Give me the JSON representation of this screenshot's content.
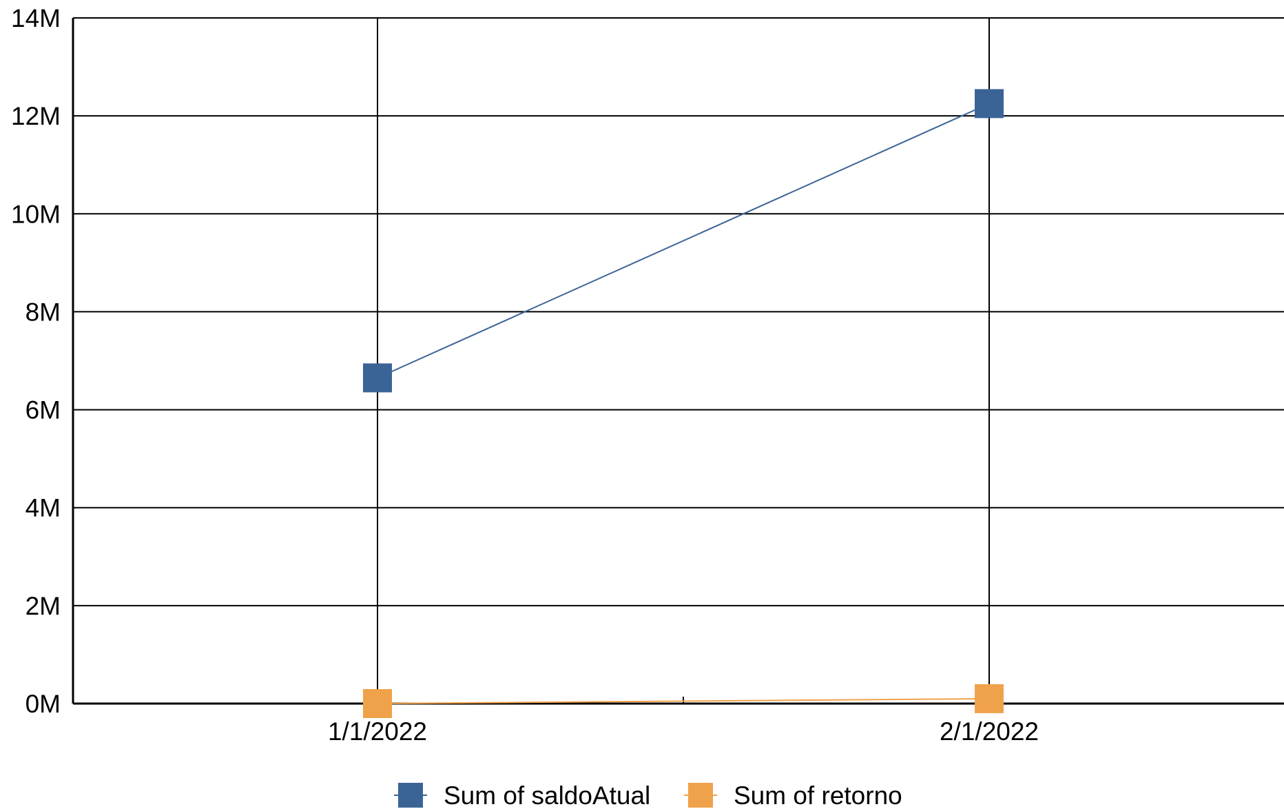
{
  "chart_data": {
    "type": "line",
    "categories": [
      "1/1/2022",
      "2/1/2022"
    ],
    "series": [
      {
        "name": "Sum of saldoAtual",
        "values": [
          6.65,
          12.25
        ],
        "color": "#3b6496"
      },
      {
        "name": "Sum of retorno",
        "values": [
          0.0,
          0.1
        ],
        "color": "#f0a24b"
      }
    ],
    "y_ticks": [
      "0M",
      "2M",
      "4M",
      "6M",
      "8M",
      "10M",
      "12M",
      "14M"
    ],
    "y_unit": "millions",
    "ylim": [
      0,
      14
    ],
    "grid": true,
    "legend_position": "bottom"
  }
}
